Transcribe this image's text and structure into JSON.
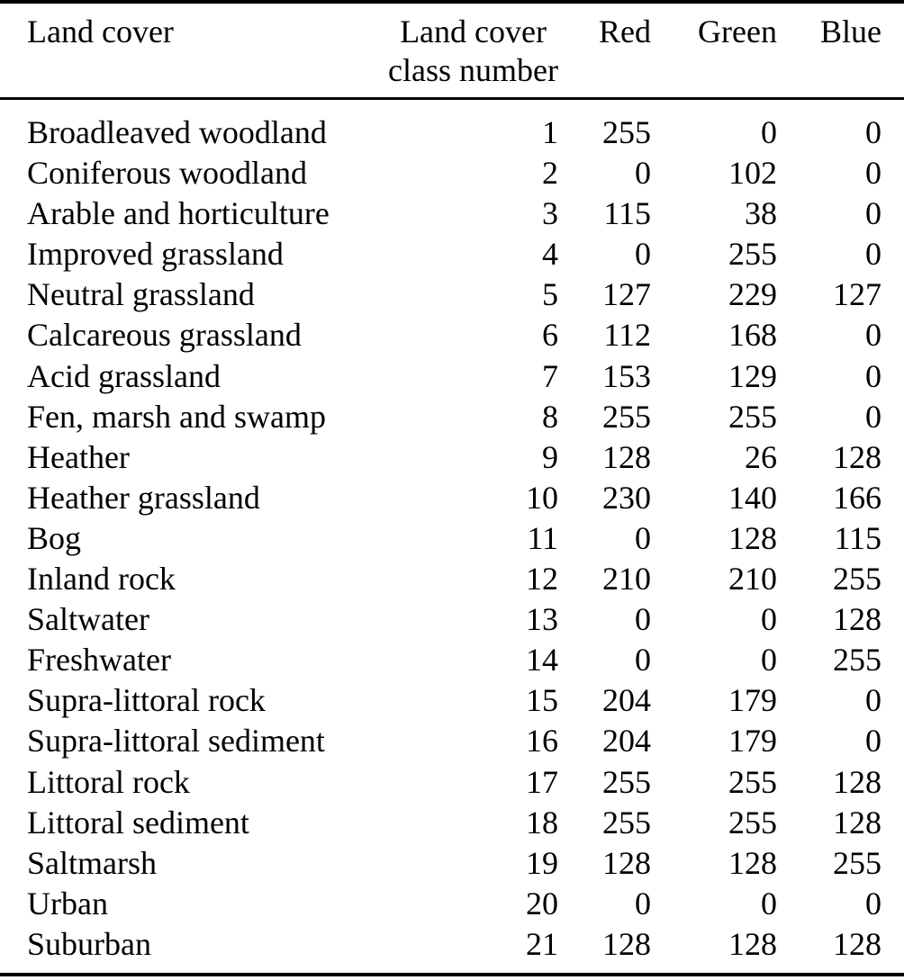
{
  "page": {
    "background": "#ffffff",
    "text_color": "#000000",
    "rule_color": "#000000"
  },
  "table": {
    "header": {
      "land_cover": "Land cover",
      "class_number_line1": "Land cover",
      "class_number_line2": "class number",
      "red": "Red",
      "green": "Green",
      "blue": "Blue"
    },
    "rows": [
      {
        "land_cover": "Broadleaved woodland",
        "class_number": "1",
        "red": "255",
        "green": "0",
        "blue": "0"
      },
      {
        "land_cover": "Coniferous woodland",
        "class_number": "2",
        "red": "0",
        "green": "102",
        "blue": "0"
      },
      {
        "land_cover": "Arable and horticulture",
        "class_number": "3",
        "red": "115",
        "green": "38",
        "blue": "0"
      },
      {
        "land_cover": "Improved grassland",
        "class_number": "4",
        "red": "0",
        "green": "255",
        "blue": "0"
      },
      {
        "land_cover": "Neutral grassland",
        "class_number": "5",
        "red": "127",
        "green": "229",
        "blue": "127"
      },
      {
        "land_cover": "Calcareous grassland",
        "class_number": "6",
        "red": "112",
        "green": "168",
        "blue": "0"
      },
      {
        "land_cover": "Acid grassland",
        "class_number": "7",
        "red": "153",
        "green": "129",
        "blue": "0"
      },
      {
        "land_cover": "Fen, marsh and swamp",
        "class_number": "8",
        "red": "255",
        "green": "255",
        "blue": "0"
      },
      {
        "land_cover": "Heather",
        "class_number": "9",
        "red": "128",
        "green": "26",
        "blue": "128"
      },
      {
        "land_cover": "Heather grassland",
        "class_number": "10",
        "red": "230",
        "green": "140",
        "blue": "166"
      },
      {
        "land_cover": "Bog",
        "class_number": "11",
        "red": "0",
        "green": "128",
        "blue": "115"
      },
      {
        "land_cover": "Inland rock",
        "class_number": "12",
        "red": "210",
        "green": "210",
        "blue": "255"
      },
      {
        "land_cover": "Saltwater",
        "class_number": "13",
        "red": "0",
        "green": "0",
        "blue": "128"
      },
      {
        "land_cover": "Freshwater",
        "class_number": "14",
        "red": "0",
        "green": "0",
        "blue": "255"
      },
      {
        "land_cover": "Supra-littoral rock",
        "class_number": "15",
        "red": "204",
        "green": "179",
        "blue": "0"
      },
      {
        "land_cover": "Supra-littoral sediment",
        "class_number": "16",
        "red": "204",
        "green": "179",
        "blue": "0"
      },
      {
        "land_cover": "Littoral rock",
        "class_number": "17",
        "red": "255",
        "green": "255",
        "blue": "128"
      },
      {
        "land_cover": "Littoral sediment",
        "class_number": "18",
        "red": "255",
        "green": "255",
        "blue": "128"
      },
      {
        "land_cover": "Saltmarsh",
        "class_number": "19",
        "red": "128",
        "green": "128",
        "blue": "255"
      },
      {
        "land_cover": "Urban",
        "class_number": "20",
        "red": "0",
        "green": "0",
        "blue": "0"
      },
      {
        "land_cover": "Suburban",
        "class_number": "21",
        "red": "128",
        "green": "128",
        "blue": "128"
      }
    ]
  }
}
